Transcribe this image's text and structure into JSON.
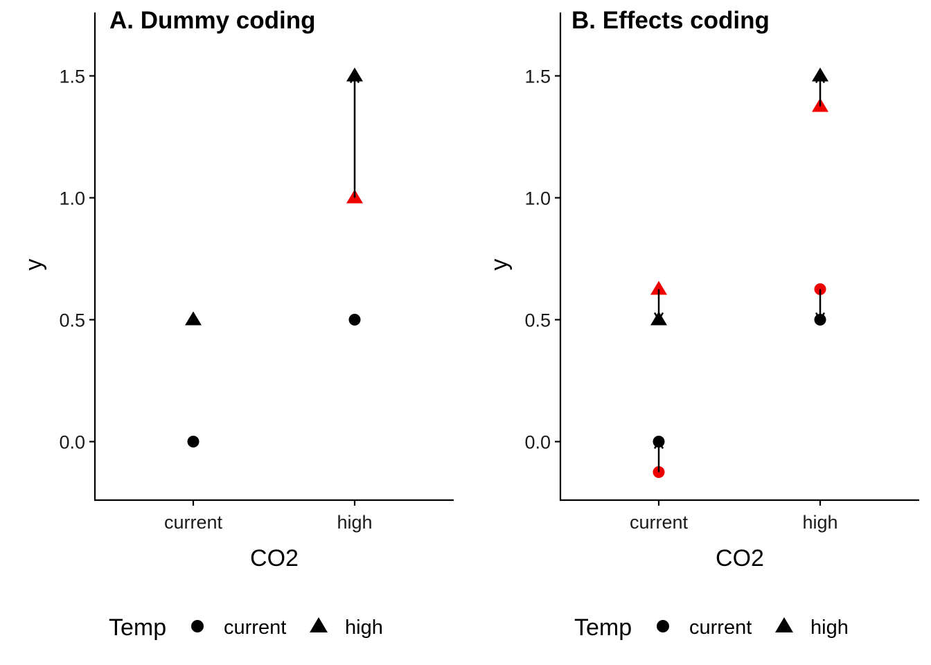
{
  "colors": {
    "base": "#000000",
    "estimate": "#ee0000",
    "axis": "#000000"
  },
  "chart_data": [
    {
      "type": "scatter",
      "title": "A. Dummy coding",
      "xlabel": "CO2",
      "ylabel": "y",
      "categories": [
        "current",
        "high"
      ],
      "ylim": [
        -0.24,
        1.76
      ],
      "yticks": [
        0.0,
        0.5,
        1.0,
        1.5
      ],
      "ytick_labels": [
        "0.0",
        "0.5",
        "1.0",
        "1.5"
      ],
      "grid": false,
      "legend_placement": "bottom",
      "points": [
        {
          "co2": "current",
          "temp": "current",
          "y": 0.0,
          "color": "#000000",
          "shape": "circle"
        },
        {
          "co2": "current",
          "temp": "high",
          "y": 0.5,
          "color": "#000000",
          "shape": "triangle"
        },
        {
          "co2": "high",
          "temp": "current",
          "y": 0.5,
          "color": "#000000",
          "shape": "circle"
        },
        {
          "co2": "high",
          "temp": "high",
          "y": 1.0,
          "color": "#ee0000",
          "shape": "triangle"
        },
        {
          "co2": "high",
          "temp": "high",
          "y": 1.5,
          "color": "#000000",
          "shape": "triangle"
        }
      ],
      "arrows": [
        {
          "co2": "high",
          "from": 1.0,
          "to": 1.5
        }
      ]
    },
    {
      "type": "scatter",
      "title": "B. Effects coding",
      "xlabel": "CO2",
      "ylabel": "y",
      "categories": [
        "current",
        "high"
      ],
      "ylim": [
        -0.24,
        1.76
      ],
      "yticks": [
        0.0,
        0.5,
        1.0,
        1.5
      ],
      "ytick_labels": [
        "0.0",
        "0.5",
        "1.0",
        "1.5"
      ],
      "grid": false,
      "legend_placement": "bottom",
      "points": [
        {
          "co2": "current",
          "temp": "current",
          "y": -0.125,
          "color": "#ee0000",
          "shape": "circle"
        },
        {
          "co2": "current",
          "temp": "current",
          "y": 0.0,
          "color": "#000000",
          "shape": "circle"
        },
        {
          "co2": "current",
          "temp": "high",
          "y": 0.625,
          "color": "#ee0000",
          "shape": "triangle"
        },
        {
          "co2": "current",
          "temp": "high",
          "y": 0.5,
          "color": "#000000",
          "shape": "triangle"
        },
        {
          "co2": "high",
          "temp": "current",
          "y": 0.625,
          "color": "#ee0000",
          "shape": "circle"
        },
        {
          "co2": "high",
          "temp": "current",
          "y": 0.5,
          "color": "#000000",
          "shape": "circle"
        },
        {
          "co2": "high",
          "temp": "high",
          "y": 1.375,
          "color": "#ee0000",
          "shape": "triangle"
        },
        {
          "co2": "high",
          "temp": "high",
          "y": 1.5,
          "color": "#000000",
          "shape": "triangle"
        }
      ],
      "arrows": [
        {
          "co2": "current",
          "from": -0.125,
          "to": 0.0
        },
        {
          "co2": "current",
          "from": 0.625,
          "to": 0.5
        },
        {
          "co2": "high",
          "from": 0.625,
          "to": 0.5
        },
        {
          "co2": "high",
          "from": 1.375,
          "to": 1.5
        }
      ]
    }
  ],
  "legend": {
    "title": "Temp",
    "items": [
      {
        "label": "current",
        "shape": "circle"
      },
      {
        "label": "high",
        "shape": "triangle"
      }
    ]
  }
}
